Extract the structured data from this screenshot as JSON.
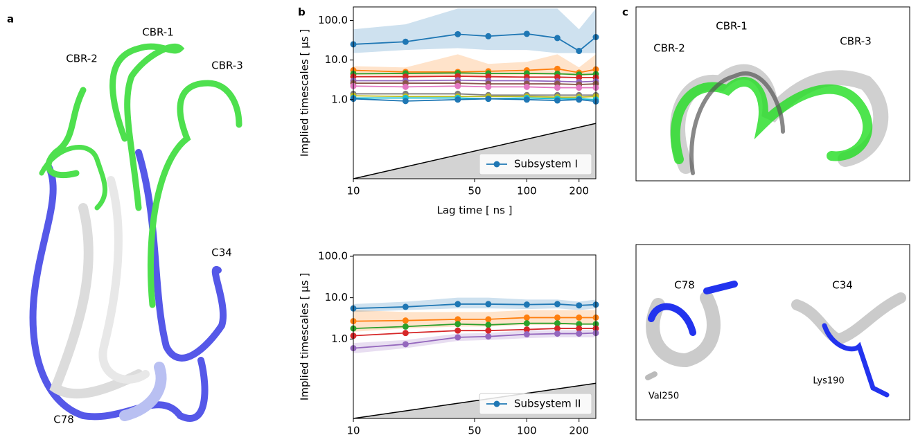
{
  "panels": {
    "a": {
      "label": "a",
      "annotations": [
        "CBR-2",
        "CBR-1",
        "CBR-3",
        "C34",
        "C78"
      ]
    },
    "b": {
      "label": "b"
    },
    "c": {
      "label": "c",
      "top_annotations": [
        "CBR-2",
        "CBR-1",
        "CBR-3"
      ],
      "bottom_annotations": [
        "C78",
        "C34",
        "Val250",
        "Lys190"
      ]
    }
  },
  "chart_data": [
    {
      "type": "line",
      "ylabel": "Implied timescales [ µs ]",
      "xlabel": "Lag time [ ns ]",
      "log_x": true,
      "log_y": true,
      "legend": "lower right",
      "x": [
        10,
        20,
        40,
        60,
        100,
        150,
        200,
        250
      ],
      "xlim": [
        10,
        250
      ],
      "xticks": [
        10,
        50,
        100,
        200
      ],
      "ylim": [
        0.01,
        220
      ],
      "yticks": [
        {
          "value": 1,
          "label": "1.0"
        },
        {
          "value": 10,
          "label": "10.0"
        },
        {
          "value": 100,
          "label": "100.0"
        }
      ],
      "lag_line": {
        "x": [
          10,
          250
        ],
        "y": [
          0.01,
          0.25
        ],
        "color": "#d3d3d3"
      },
      "series": [
        {
          "name": "Subsystem I",
          "color": "#1f77b4",
          "values": [
            25,
            29,
            45,
            40,
            46,
            36,
            17,
            38
          ],
          "lower": [
            15,
            18,
            20,
            18,
            18,
            15,
            15,
            15
          ],
          "upper": [
            60,
            80,
            200,
            200,
            200,
            200,
            60,
            200
          ]
        },
        {
          "color": "#ff7f0e",
          "values": [
            5.5,
            5,
            5,
            5.2,
            5.5,
            6,
            4.8,
            5.8
          ],
          "lower": [
            4.2,
            4,
            3.9,
            4,
            4.1,
            4.3,
            3.8,
            4.2
          ],
          "upper": [
            7,
            6.5,
            14,
            8,
            9,
            14,
            6.5,
            14
          ]
        },
        {
          "color": "#2ca02c",
          "values": [
            4.5,
            4.6,
            4.7,
            4.6,
            4.6,
            4.5,
            4.3,
            4.4
          ]
        },
        {
          "color": "#d62728",
          "values": [
            3.8,
            3.8,
            3.9,
            3.8,
            3.7,
            3.7,
            3.6,
            3.6
          ]
        },
        {
          "color": "#9467bd",
          "values": [
            3,
            3,
            3.1,
            3,
            3,
            2.9,
            2.8,
            2.9
          ]
        },
        {
          "color": "#8c564b",
          "values": [
            2.6,
            2.6,
            2.6,
            2.5,
            2.5,
            2.5,
            2.4,
            2.5
          ]
        },
        {
          "color": "#e377c2",
          "values": [
            2.2,
            2.1,
            2.2,
            2.1,
            2.1,
            2,
            2,
            2
          ]
        },
        {
          "color": "#7f7f7f",
          "values": [
            1.4,
            1.4,
            1.4,
            1.3,
            1.3,
            1.3,
            1.3,
            1.3
          ]
        },
        {
          "color": "#bcbd22",
          "values": [
            1.25,
            1.2,
            1.2,
            1.2,
            1.2,
            1.15,
            1.15,
            1.2
          ]
        },
        {
          "color": "#17becf",
          "values": [
            1.1,
            1.1,
            1.1,
            1.05,
            1.1,
            1.05,
            1.05,
            1
          ]
        },
        {
          "color": "#1f77b4",
          "values": [
            1.05,
            0.92,
            1,
            1.05,
            1,
            0.95,
            1,
            0.9
          ]
        }
      ]
    },
    {
      "type": "line",
      "ylabel": "Implied timescales [ µs ]",
      "log_x": true,
      "log_y": true,
      "legend": "lower right",
      "x": [
        10,
        20,
        40,
        60,
        100,
        150,
        200,
        250
      ],
      "xlim": [
        10,
        250
      ],
      "xticks": [
        10,
        50,
        100,
        200
      ],
      "ylim": [
        0.012,
        108
      ],
      "yticks": [
        {
          "value": 1,
          "label": "1.0"
        },
        {
          "value": 10,
          "label": "10.0"
        },
        {
          "value": 100,
          "label": "100.0"
        }
      ],
      "lag_line": {
        "x": [
          10,
          250
        ],
        "y": [
          0.012,
          0.085
        ],
        "color": "#d3d3d3"
      },
      "series": [
        {
          "name": "Subsystem II",
          "color": "#1f77b4",
          "values": [
            5.5,
            6,
            7,
            7,
            6.8,
            7,
            6.5,
            6.8
          ],
          "lower": [
            4.5,
            5,
            5.5,
            5.5,
            5.3,
            5.5,
            5,
            5.5
          ],
          "upper": [
            7,
            8,
            10,
            10,
            9,
            9,
            8,
            9
          ]
        },
        {
          "color": "#ff7f0e",
          "values": [
            2.7,
            2.8,
            3,
            3,
            3.3,
            3.3,
            3.3,
            3.3
          ],
          "lower": [
            1.5,
            1.8,
            2,
            2,
            2.2,
            2.2,
            2.2,
            2.2
          ],
          "upper": [
            5,
            4.5,
            4.5,
            4.5,
            5,
            5,
            5,
            5
          ]
        },
        {
          "color": "#2ca02c",
          "values": [
            1.8,
            2,
            2.3,
            2.2,
            2.4,
            2.4,
            2.3,
            2.3
          ]
        },
        {
          "color": "#d62728",
          "values": [
            1.2,
            1.4,
            1.6,
            1.6,
            1.7,
            1.8,
            1.8,
            1.8
          ]
        },
        {
          "color": "#9467bd",
          "values": [
            0.6,
            0.75,
            1.1,
            1.15,
            1.3,
            1.35,
            1.35,
            1.4
          ],
          "lower": [
            0.45,
            0.6,
            0.9,
            0.95,
            1.05,
            1.1,
            1.1,
            1.1
          ],
          "upper": [
            0.8,
            0.95,
            1.35,
            1.4,
            1.6,
            1.65,
            1.65,
            1.7
          ]
        }
      ]
    }
  ]
}
